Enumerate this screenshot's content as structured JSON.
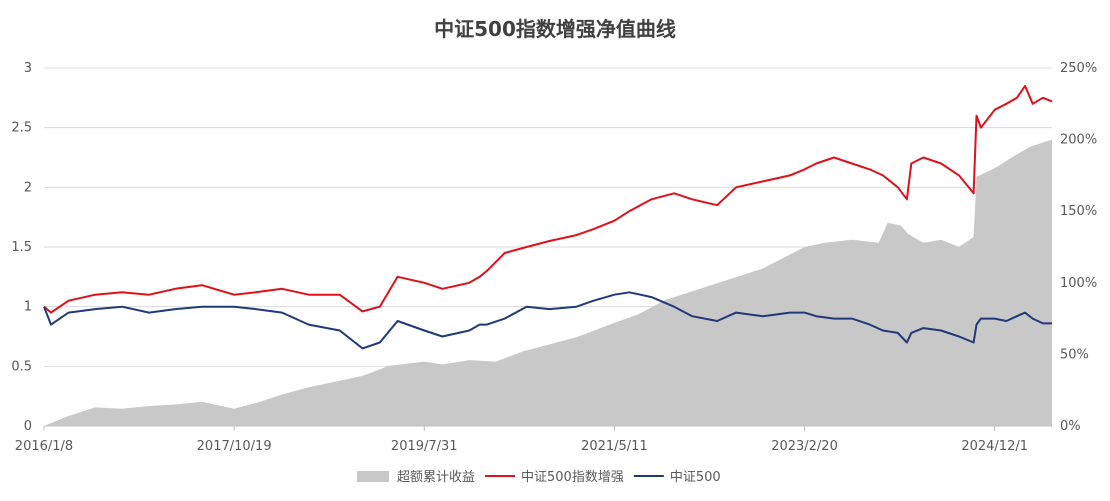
{
  "chart_data": {
    "type": "line",
    "title": "中证500指数增强净值曲线",
    "x_tick_labels": [
      "2016/1/8",
      "2017/10/19",
      "2019/7/31",
      "2021/5/11",
      "2023/2/20",
      "2024/12/1"
    ],
    "x_tick_dates": [
      "2016-01-08",
      "2017-10-19",
      "2019-07-31",
      "2021-05-11",
      "2023-02-20",
      "2024-12-01"
    ],
    "x_range": [
      "2016-01-08",
      "2025-06-15"
    ],
    "y_left": {
      "min": 0,
      "max": 3,
      "ticks": [
        "0",
        "0.5",
        "1",
        "1.5",
        "2",
        "2.5",
        "3"
      ]
    },
    "y_right": {
      "min": 0,
      "max": 2.5,
      "ticks": [
        "0%",
        "50%",
        "100%",
        "150%",
        "200%",
        "250%"
      ]
    },
    "grid": true,
    "legend_position": "bottom",
    "colors": {
      "excess": "#c8c8c8",
      "enhanced": "#e0101a",
      "index": "#1f3a7a",
      "grid": "#d9d9d9"
    },
    "series": [
      {
        "name": "超额累计收益",
        "kind": "area",
        "axis": "right",
        "x": [
          "2016-01-08",
          "2016-04-01",
          "2016-07-01",
          "2016-10-01",
          "2017-01-01",
          "2017-04-01",
          "2017-07-01",
          "2017-10-19",
          "2018-01-01",
          "2018-04-01",
          "2018-07-01",
          "2018-10-01",
          "2019-01-01",
          "2019-04-01",
          "2019-07-31",
          "2019-10-01",
          "2020-01-01",
          "2020-04-01",
          "2020-07-01",
          "2020-10-01",
          "2021-01-01",
          "2021-05-11",
          "2021-08-01",
          "2021-11-01",
          "2022-01-01",
          "2022-04-01",
          "2022-07-01",
          "2022-10-01",
          "2023-02-20",
          "2023-05-01",
          "2023-08-01",
          "2023-11-01",
          "2023-12-01",
          "2024-01-15",
          "2024-02-10",
          "2024-04-01",
          "2024-06-01",
          "2024-08-01",
          "2024-09-20",
          "2024-09-30",
          "2024-12-01",
          "2025-02-01",
          "2025-04-01",
          "2025-06-15"
        ],
        "values": [
          0.0,
          0.07,
          0.13,
          0.12,
          0.14,
          0.15,
          0.17,
          0.12,
          0.16,
          0.22,
          0.27,
          0.31,
          0.35,
          0.42,
          0.45,
          0.43,
          0.46,
          0.45,
          0.52,
          0.57,
          0.62,
          0.72,
          0.78,
          0.88,
          0.92,
          0.98,
          1.04,
          1.1,
          1.25,
          1.28,
          1.3,
          1.28,
          1.42,
          1.4,
          1.34,
          1.28,
          1.3,
          1.25,
          1.32,
          1.74,
          1.8,
          1.88,
          1.95,
          2.0
        ]
      },
      {
        "name": "中证500指数增强",
        "kind": "line",
        "axis": "left",
        "x": [
          "2016-01-08",
          "2016-02-01",
          "2016-04-01",
          "2016-07-01",
          "2016-10-01",
          "2017-01-01",
          "2017-04-01",
          "2017-07-01",
          "2017-10-19",
          "2018-01-01",
          "2018-04-01",
          "2018-07-01",
          "2018-10-15",
          "2019-01-01",
          "2019-03-01",
          "2019-05-01",
          "2019-07-31",
          "2019-10-01",
          "2020-01-01",
          "2020-02-05",
          "2020-03-01",
          "2020-05-01",
          "2020-07-15",
          "2020-10-01",
          "2021-01-01",
          "2021-03-01",
          "2021-05-11",
          "2021-07-01",
          "2021-09-15",
          "2021-12-01",
          "2022-02-01",
          "2022-04-27",
          "2022-07-01",
          "2022-10-01",
          "2023-01-01",
          "2023-02-20",
          "2023-04-01",
          "2023-06-01",
          "2023-08-01",
          "2023-10-01",
          "2023-11-15",
          "2024-01-05",
          "2024-02-05",
          "2024-02-20",
          "2024-04-01",
          "2024-06-01",
          "2024-08-01",
          "2024-09-20",
          "2024-09-30",
          "2024-10-15",
          "2024-12-01",
          "2025-01-10",
          "2025-02-15",
          "2025-03-15",
          "2025-04-10",
          "2025-05-15",
          "2025-06-15"
        ],
        "values": [
          1.0,
          0.95,
          1.05,
          1.1,
          1.12,
          1.1,
          1.15,
          1.18,
          1.1,
          1.12,
          1.15,
          1.1,
          1.1,
          0.96,
          1.0,
          1.25,
          1.2,
          1.15,
          1.2,
          1.25,
          1.3,
          1.45,
          1.5,
          1.55,
          1.6,
          1.65,
          1.72,
          1.8,
          1.9,
          1.95,
          1.9,
          1.85,
          2.0,
          2.05,
          2.1,
          2.15,
          2.2,
          2.25,
          2.2,
          2.15,
          2.1,
          2.0,
          1.9,
          2.2,
          2.25,
          2.2,
          2.1,
          1.95,
          2.6,
          2.5,
          2.65,
          2.7,
          2.75,
          2.85,
          2.7,
          2.75,
          2.72
        ]
      },
      {
        "name": "中证500",
        "kind": "line",
        "axis": "left",
        "x": [
          "2016-01-08",
          "2016-02-01",
          "2016-04-01",
          "2016-07-01",
          "2016-10-01",
          "2017-01-01",
          "2017-04-01",
          "2017-07-01",
          "2017-10-19",
          "2018-01-01",
          "2018-04-01",
          "2018-07-01",
          "2018-10-15",
          "2019-01-01",
          "2019-03-01",
          "2019-05-01",
          "2019-07-31",
          "2019-10-01",
          "2020-01-01",
          "2020-02-05",
          "2020-03-01",
          "2020-05-01",
          "2020-07-15",
          "2020-10-01",
          "2021-01-01",
          "2021-03-01",
          "2021-05-11",
          "2021-07-01",
          "2021-09-15",
          "2021-12-01",
          "2022-02-01",
          "2022-04-27",
          "2022-07-01",
          "2022-10-01",
          "2023-01-01",
          "2023-02-20",
          "2023-04-01",
          "2023-06-01",
          "2023-08-01",
          "2023-10-01",
          "2023-11-15",
          "2024-01-05",
          "2024-02-05",
          "2024-02-20",
          "2024-04-01",
          "2024-06-01",
          "2024-08-01",
          "2024-09-20",
          "2024-09-30",
          "2024-10-15",
          "2024-12-01",
          "2025-01-10",
          "2025-02-15",
          "2025-03-15",
          "2025-04-10",
          "2025-05-15",
          "2025-06-15"
        ],
        "values": [
          1.0,
          0.85,
          0.95,
          0.98,
          1.0,
          0.95,
          0.98,
          1.0,
          1.0,
          0.98,
          0.95,
          0.85,
          0.8,
          0.65,
          0.7,
          0.88,
          0.8,
          0.75,
          0.8,
          0.85,
          0.85,
          0.9,
          1.0,
          0.98,
          1.0,
          1.05,
          1.1,
          1.12,
          1.08,
          1.0,
          0.92,
          0.88,
          0.95,
          0.92,
          0.95,
          0.95,
          0.92,
          0.9,
          0.9,
          0.85,
          0.8,
          0.78,
          0.7,
          0.78,
          0.82,
          0.8,
          0.75,
          0.7,
          0.85,
          0.9,
          0.9,
          0.88,
          0.92,
          0.95,
          0.9,
          0.86,
          0.86
        ]
      }
    ]
  }
}
